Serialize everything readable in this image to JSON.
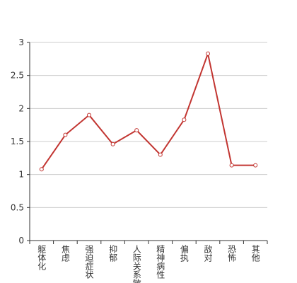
{
  "chart_data": {
    "type": "line",
    "categories": [
      "躯体化",
      "焦虑",
      "强迫症状",
      "抑郁",
      "人际关系敏感",
      "精神病性",
      "偏执",
      "敌对",
      "恐怖",
      "其他"
    ],
    "values": [
      1.08,
      1.6,
      1.9,
      1.46,
      1.67,
      1.3,
      1.83,
      2.83,
      1.14,
      1.14
    ],
    "color": "#c23531",
    "ylim": [
      0,
      3
    ],
    "yticks": [
      0,
      0.5,
      1,
      1.5,
      2,
      2.5,
      3
    ],
    "grid": true
  }
}
